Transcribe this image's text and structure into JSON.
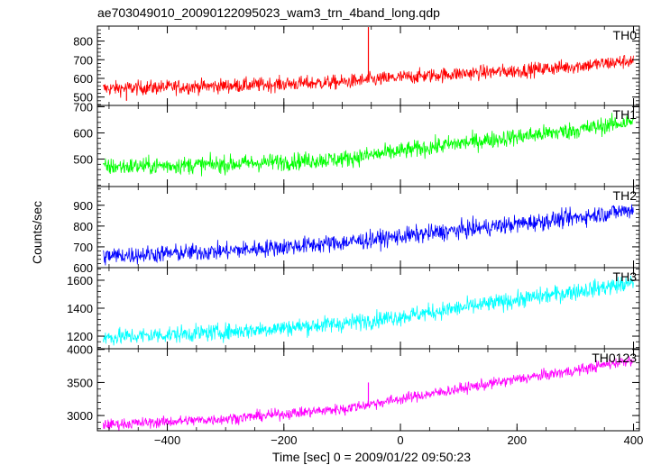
{
  "chart_data": {
    "type": "line",
    "title": "ae703049010_20090122095023_wam3_trn_4band_long.qdp",
    "xlabel": "Time [sec] 0 = 2009/01/22 09:50:23",
    "ylabel": "Counts/sec",
    "xlim": [
      -520,
      410
    ],
    "x_ticks": [
      -400,
      -200,
      0,
      200,
      400
    ],
    "panels": [
      {
        "name": "TH0",
        "color": "#ff0000",
        "ylim": [
          455,
          880
        ],
        "y_ticks": [
          500,
          600,
          700,
          800
        ],
        "trend": {
          "x": [
            -510,
            -300,
            -100,
            0,
            100,
            200,
            300,
            400
          ],
          "y": [
            545,
            560,
            580,
            605,
            625,
            640,
            665,
            695
          ]
        },
        "noise": 35,
        "x_range": [
          -510,
          400
        ],
        "spikes": [
          {
            "x": -55,
            "y": 875
          },
          {
            "x": -470,
            "y": 480
          }
        ]
      },
      {
        "name": "TH1",
        "color": "#00ff00",
        "ylim": [
          395,
          705
        ],
        "y_ticks": [
          500,
          600,
          700
        ],
        "trend": {
          "x": [
            -510,
            -300,
            -100,
            0,
            100,
            200,
            300,
            400
          ],
          "y": [
            470,
            480,
            500,
            530,
            560,
            585,
            610,
            645
          ]
        },
        "noise": 30,
        "x_range": [
          -510,
          400
        ],
        "spikes": []
      },
      {
        "name": "TH2",
        "color": "#0000ff",
        "ylim": [
          600,
          990
        ],
        "y_ticks": [
          600,
          700,
          800,
          900
        ],
        "trend": {
          "x": [
            -510,
            -300,
            -100,
            0,
            100,
            200,
            300,
            400
          ],
          "y": [
            655,
            680,
            720,
            750,
            780,
            810,
            840,
            880
          ]
        },
        "noise": 38,
        "x_range": [
          -510,
          400
        ],
        "spikes": []
      },
      {
        "name": "TH3",
        "color": "#00ffff",
        "ylim": [
          1110,
          1690
        ],
        "y_ticks": [
          1200,
          1400,
          1600
        ],
        "trend": {
          "x": [
            -510,
            -300,
            -100,
            0,
            100,
            200,
            300,
            400
          ],
          "y": [
            1190,
            1230,
            1290,
            1340,
            1400,
            1460,
            1520,
            1580
          ]
        },
        "noise": 55,
        "x_range": [
          -510,
          400
        ],
        "spikes": []
      },
      {
        "name": "TH0123",
        "color": "#ff00ff",
        "ylim": [
          2770,
          4010
        ],
        "y_ticks": [
          3000,
          3500,
          4000
        ],
        "trend": {
          "x": [
            -510,
            -300,
            -100,
            0,
            100,
            200,
            300,
            400
          ],
          "y": [
            2860,
            2950,
            3100,
            3250,
            3400,
            3550,
            3680,
            3850
          ]
        },
        "noise": 75,
        "x_range": [
          -510,
          400
        ],
        "spikes": [
          {
            "x": -55,
            "y": 3500
          },
          {
            "x": -95,
            "y": 3000
          }
        ]
      }
    ]
  }
}
